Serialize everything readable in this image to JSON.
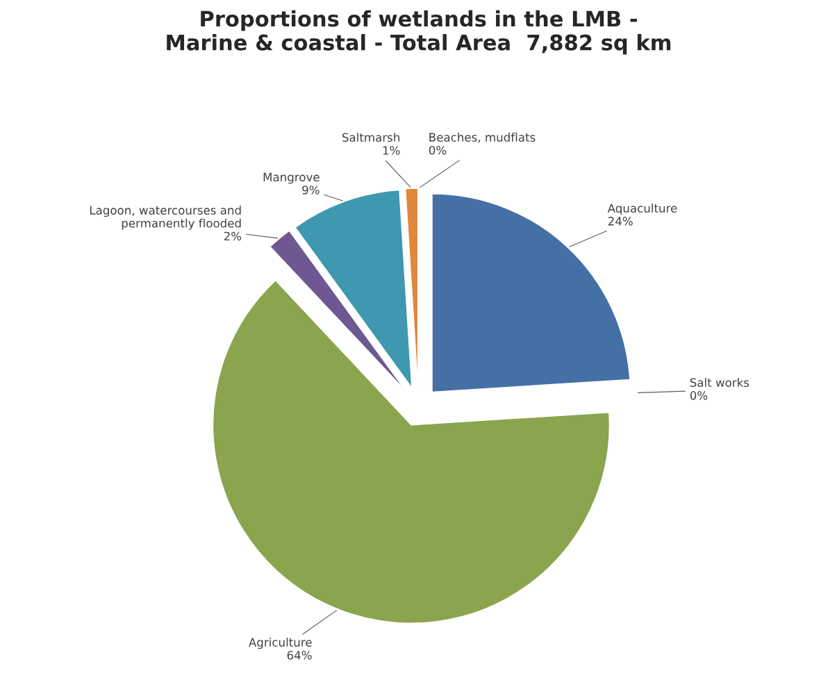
{
  "chart_data": {
    "type": "pie",
    "title": "Proportions of wetlands in the LMB -\nMarine & coastal - Total Area  7,882 sq km",
    "categories": [
      "Aquaculture",
      "Salt works",
      "Agriculture",
      "Lagoon, watercourses and\npermanently flooded",
      "Mangrove",
      "Saltmarsh",
      "Beaches, mudflats"
    ],
    "values": [
      24,
      0,
      64,
      2,
      9,
      1,
      0
    ],
    "value_labels": [
      "24%",
      "0%",
      "64%",
      "2%",
      "9%",
      "1%",
      "0%"
    ],
    "colors": [
      "#4470a6",
      "#c0504d",
      "#8aa54e",
      "#6f5791",
      "#3f97b0",
      "#e0873a",
      "#2c4d75"
    ]
  }
}
